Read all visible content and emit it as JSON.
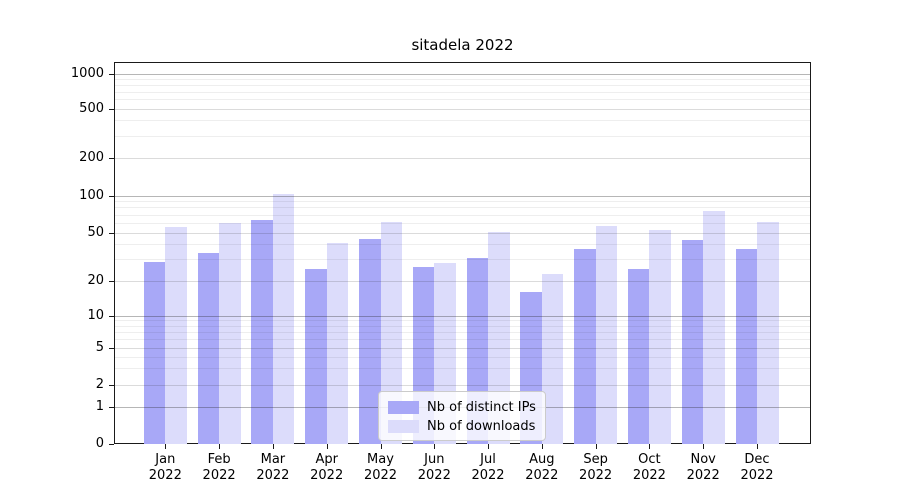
{
  "chart_data": {
    "type": "bar",
    "title": "sitadela 2022",
    "categories": [
      "Jan",
      "Feb",
      "Mar",
      "Apr",
      "May",
      "Jun",
      "Jul",
      "Aug",
      "Sep",
      "Oct",
      "Nov",
      "Dec"
    ],
    "category_year": "2022",
    "series": [
      {
        "name": "Nb of distinct IPs",
        "color": "#a8a8f7",
        "values": [
          29,
          34,
          64,
          25,
          45,
          26,
          31,
          16,
          37,
          25,
          44,
          37
        ]
      },
      {
        "name": "Nb of downloads",
        "color": "#dcdcfb",
        "values": [
          56,
          60,
          104,
          41,
          62,
          28,
          51,
          23,
          57,
          53,
          75,
          61
        ]
      }
    ],
    "yscale": "symlog",
    "yticks": [
      0,
      1,
      2,
      5,
      10,
      20,
      50,
      100,
      200,
      500,
      1000
    ],
    "ylim": [
      0,
      1250
    ],
    "xlabel": "",
    "ylabel": "",
    "grid": true,
    "legend_position": "lower center"
  },
  "colors": {
    "background": "#ffffff",
    "axis": "#1a1a1a",
    "bar_distinct_ips": "#a8a8f7",
    "bar_downloads": "#dcdcfb"
  }
}
